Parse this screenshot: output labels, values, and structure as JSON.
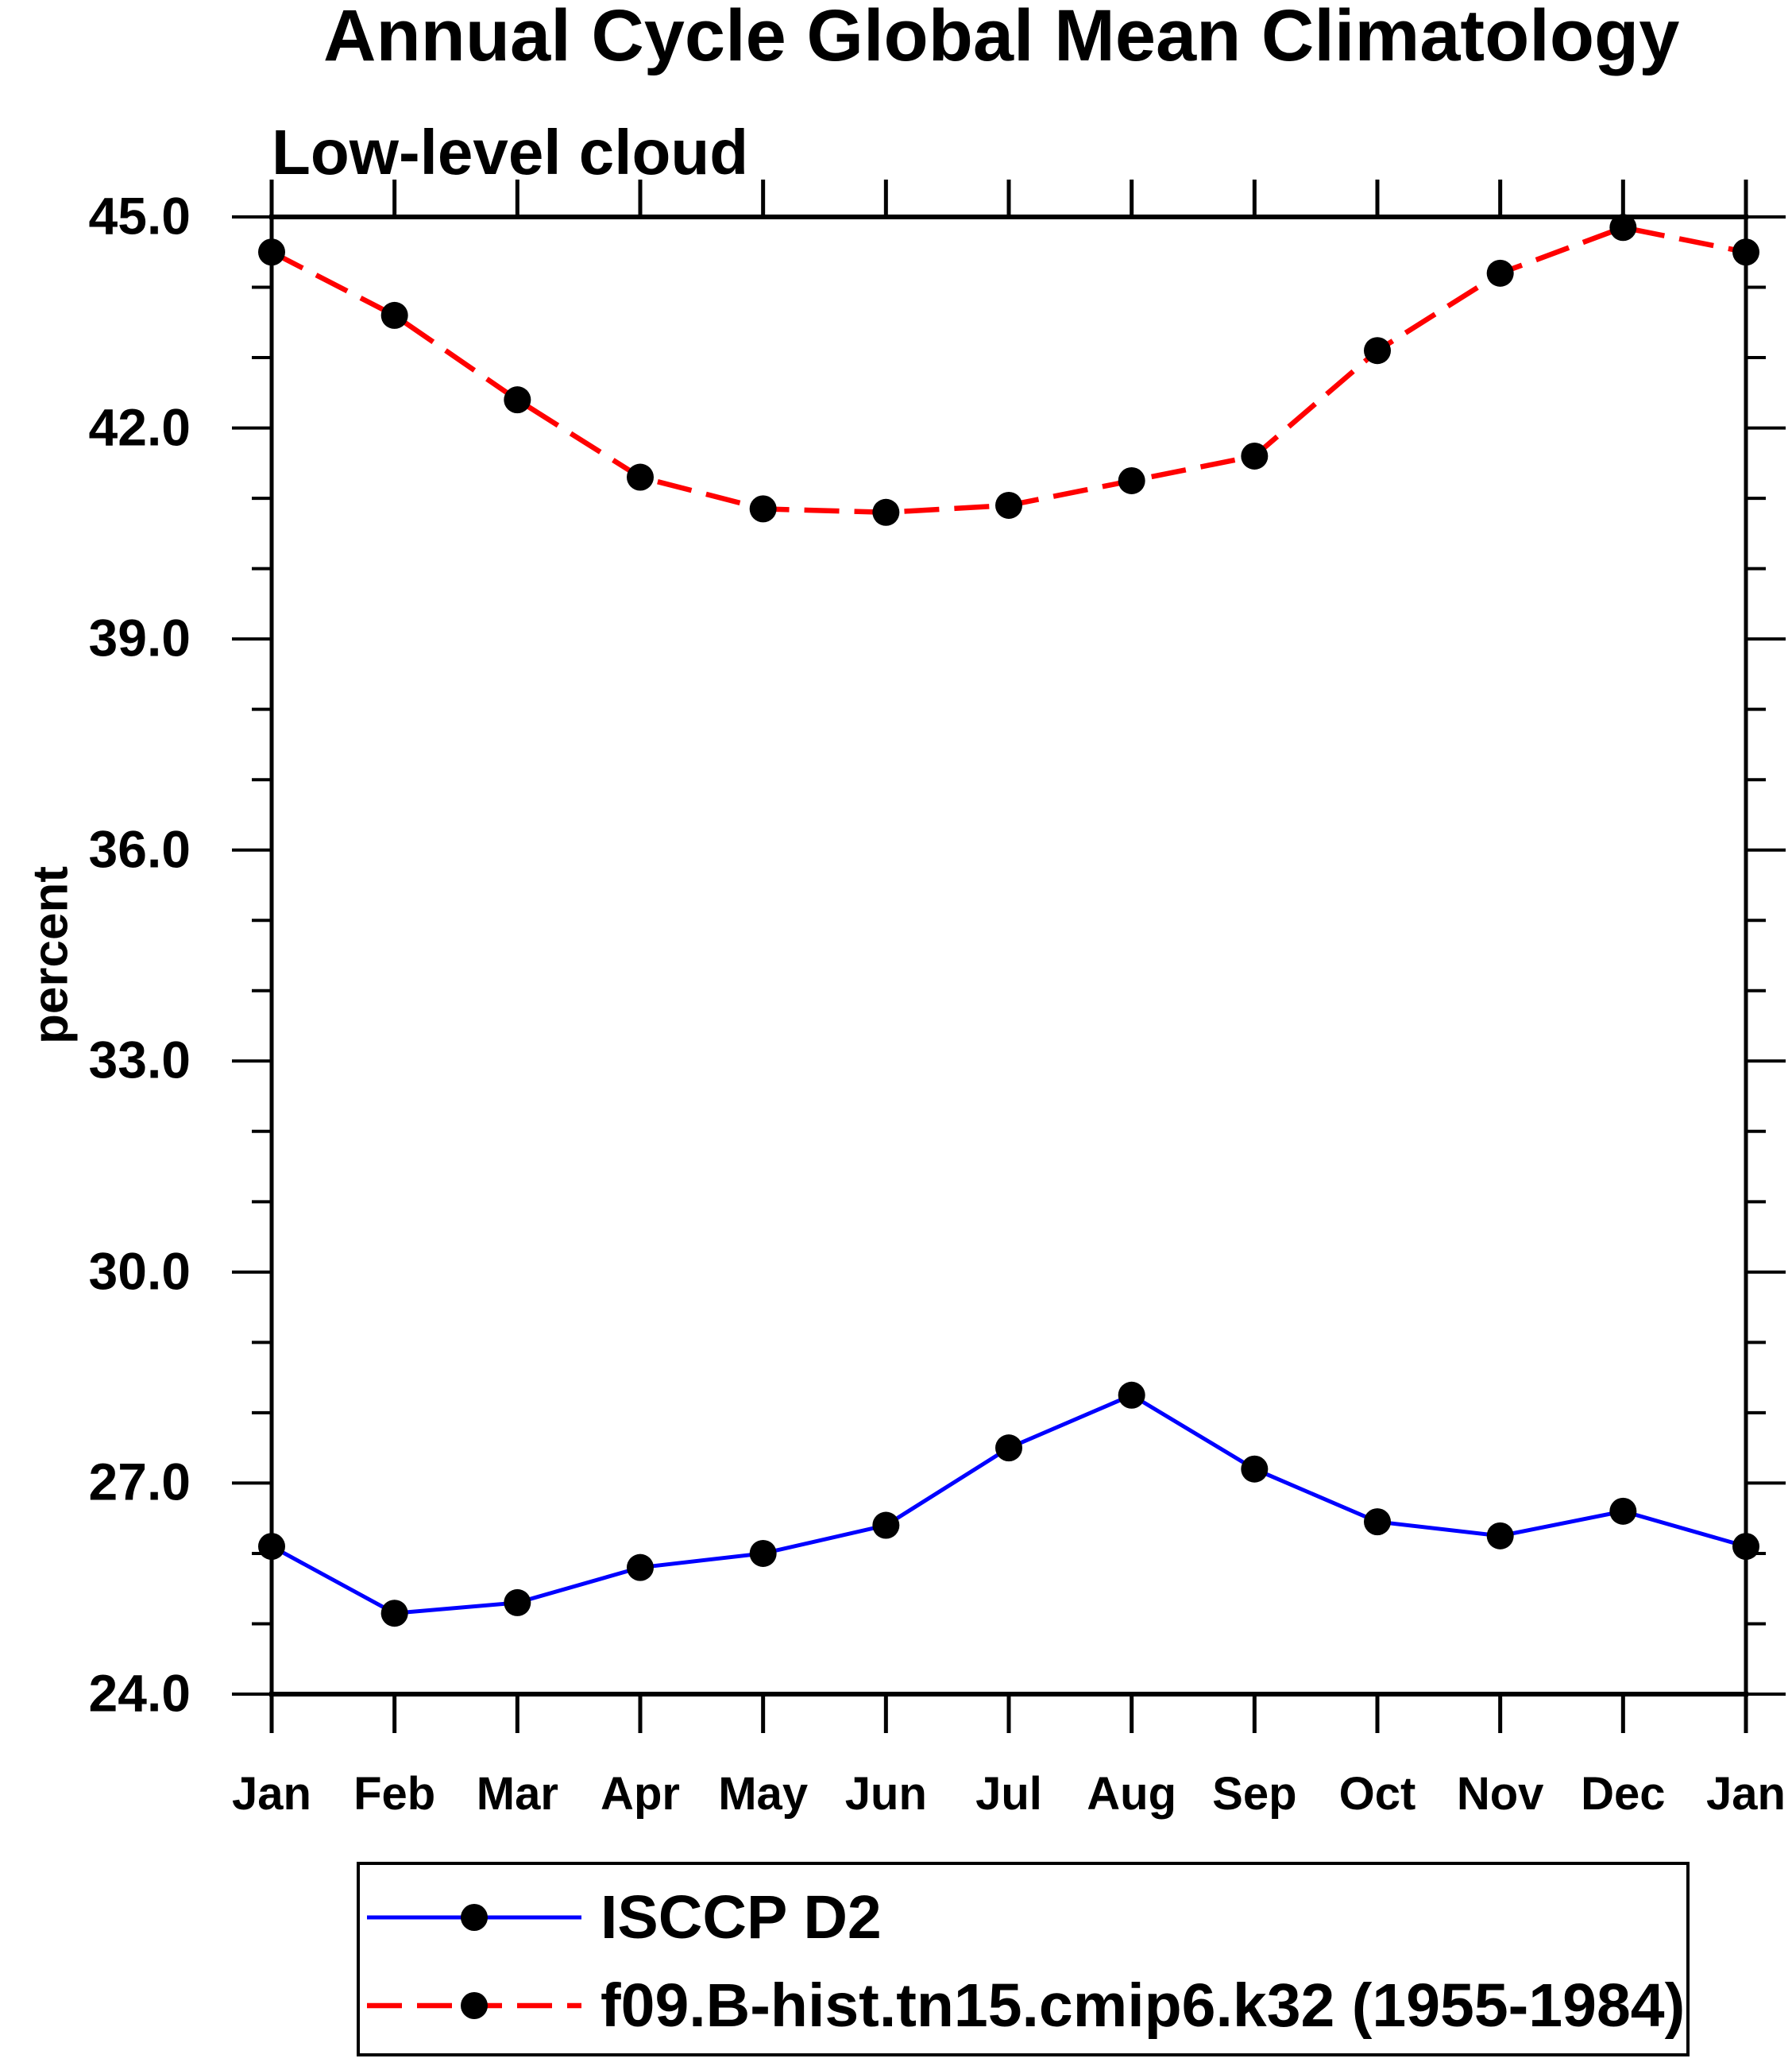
{
  "title": "Annual Cycle Global Mean Climatology",
  "subtitle": "Low-level cloud",
  "ylabel": "percent",
  "legend": {
    "items": [
      {
        "label": "ISCCP D2",
        "color": "#0000ff",
        "style": "solid"
      },
      {
        "label": "f09.B-hist.tn15.cmip6.k32 (1955-1984)",
        "color": "#ff0000",
        "style": "dashed"
      }
    ]
  },
  "colors": {
    "axis": "#000000",
    "marker": "#000000",
    "background": "#ffffff",
    "isccp_line": "#0000ff",
    "model_line": "#ff0000"
  },
  "chart_data": {
    "type": "line",
    "title": "Annual Cycle Global Mean Climatology",
    "subtitle": "Low-level cloud",
    "xlabel": "",
    "ylabel": "percent",
    "categories": [
      "Jan",
      "Feb",
      "Mar",
      "Apr",
      "May",
      "Jun",
      "Jul",
      "Aug",
      "Sep",
      "Oct",
      "Nov",
      "Dec",
      "Jan"
    ],
    "series": [
      {
        "name": "ISCCP D2",
        "color": "#0000ff",
        "line_style": "solid",
        "marker": "filled-circle",
        "marker_color": "#000000",
        "values": [
          26.1,
          25.15,
          25.3,
          25.8,
          26.0,
          26.4,
          27.5,
          28.25,
          27.2,
          26.45,
          26.25,
          26.6,
          26.1
        ]
      },
      {
        "name": "f09.B-hist.tn15.cmip6.k32 (1955-1984)",
        "color": "#ff0000",
        "line_style": "dashed",
        "marker": "filled-circle",
        "marker_color": "#000000",
        "values": [
          44.5,
          43.6,
          42.4,
          41.3,
          40.85,
          40.8,
          40.9,
          41.25,
          41.6,
          43.1,
          44.2,
          44.85,
          44.5
        ]
      }
    ],
    "ylim": [
      24.0,
      45.0
    ],
    "ytick_labels": [
      "45.0",
      "42.0",
      "39.0",
      "36.0",
      "33.0",
      "30.0",
      "27.0",
      "24.0"
    ],
    "ytick_major_step": 3.0,
    "ytick_minor_step": 1.0,
    "grid": false,
    "legend_position": "bottom"
  }
}
